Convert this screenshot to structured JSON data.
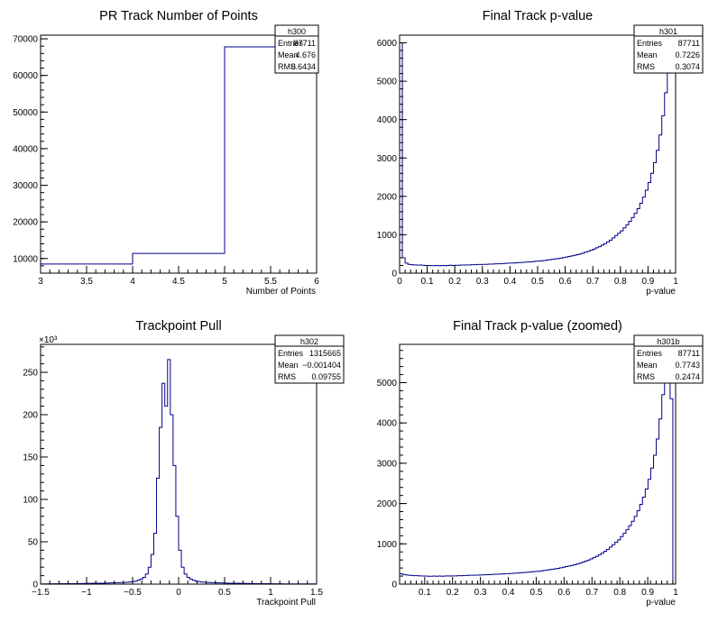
{
  "panels": [
    {
      "id": "pr-npoints",
      "stats": {
        "name": "h300",
        "rows": [
          [
            "Entries",
            "87711"
          ],
          [
            "Mean",
            "4.676"
          ],
          [
            "RMS",
            "0.6434"
          ]
        ]
      },
      "chart_data": {
        "type": "histogram",
        "title": "PR Track Number of Points",
        "xlabel": "Number of Points",
        "ylabel": "",
        "xlim": [
          3,
          6
        ],
        "ylim": [
          6000,
          71000
        ],
        "ymin_baseline": 6000,
        "xticks": [
          3,
          3.5,
          4,
          4.5,
          5,
          5.5,
          6
        ],
        "xtick_labels": [
          "3",
          "3.5",
          "4",
          "4.5",
          "5",
          "5.5",
          "6"
        ],
        "yticks": [
          10000,
          20000,
          30000,
          40000,
          50000,
          60000,
          70000
        ],
        "ytick_labels": [
          "10000",
          "20000",
          "30000",
          "40000",
          "50000",
          "60000",
          "70000"
        ],
        "y_exponent": "",
        "edges": [
          3,
          4,
          5,
          6
        ],
        "values": [
          8500,
          11400,
          67800
        ],
        "line_color": "#00008b"
      }
    },
    {
      "id": "final-pvalue",
      "stats": {
        "name": "h301",
        "rows": [
          [
            "Entries",
            "87711"
          ],
          [
            "Mean",
            "0.7226"
          ],
          [
            "RMS",
            "0.3074"
          ]
        ]
      },
      "chart_data": {
        "type": "histogram",
        "title": "Final Track p-value",
        "xlabel": "p-value",
        "ylabel": "",
        "xlim": [
          0,
          1
        ],
        "ylim": [
          0,
          6200
        ],
        "xticks": [
          0,
          0.1,
          0.2,
          0.3,
          0.4,
          0.5,
          0.6,
          0.7,
          0.8,
          0.9,
          1
        ],
        "xtick_labels": [
          "0",
          "0.1",
          "0.2",
          "0.3",
          "0.4",
          "0.5",
          "0.6",
          "0.7",
          "0.8",
          "0.9",
          "1"
        ],
        "yticks": [
          0,
          1000,
          2000,
          3000,
          4000,
          5000,
          6000
        ],
        "ytick_labels": [
          "0",
          "1000",
          "2000",
          "3000",
          "4000",
          "5000",
          "6000"
        ],
        "y_exponent": "",
        "bin_start": 0,
        "bin_width": 0.01,
        "values": [
          6000,
          400,
          260,
          230,
          220,
          215,
          210,
          210,
          205,
          200,
          200,
          195,
          195,
          200,
          195,
          200,
          195,
          200,
          205,
          200,
          205,
          205,
          210,
          210,
          215,
          215,
          220,
          220,
          225,
          225,
          230,
          230,
          235,
          235,
          240,
          245,
          245,
          250,
          255,
          260,
          260,
          265,
          270,
          275,
          280,
          285,
          290,
          295,
          300,
          310,
          315,
          320,
          330,
          340,
          350,
          360,
          370,
          380,
          390,
          405,
          420,
          435,
          450,
          465,
          480,
          500,
          520,
          545,
          570,
          595,
          625,
          660,
          690,
          730,
          770,
          815,
          860,
          920,
          980,
          1040,
          1100,
          1180,
          1260,
          1350,
          1450,
          1560,
          1680,
          1820,
          1980,
          2160,
          2360,
          2600,
          2880,
          3200,
          3600,
          4100,
          4700,
          5400,
          6100,
          5500
        ],
        "line_color": "#00008b"
      }
    },
    {
      "id": "trackpoint-pull",
      "stats": {
        "name": "h302",
        "rows": [
          [
            "Entries",
            "1315665"
          ],
          [
            "Mean",
            "−0.001404"
          ],
          [
            "RMS",
            "0.09755"
          ]
        ]
      },
      "chart_data": {
        "type": "histogram",
        "title": "Trackpoint Pull",
        "xlabel": "Trackpoint Pull",
        "ylabel": "",
        "xlim": [
          -1.5,
          1.5
        ],
        "ylim": [
          0,
          283
        ],
        "xticks": [
          -1.5,
          -1,
          -0.5,
          0,
          0.5,
          1,
          1.5
        ],
        "xtick_labels": [
          "−1.5",
          "−1",
          "−0.5",
          "0",
          "0.5",
          "1",
          "1.5"
        ],
        "yticks": [
          0,
          50,
          100,
          150,
          200,
          250
        ],
        "ytick_labels": [
          "0",
          "50",
          "100",
          "150",
          "200",
          "250"
        ],
        "y_exponent": "×10³",
        "bin_start": -1.5,
        "bin_width": 0.03,
        "values": [
          0.3,
          0.3,
          0.3,
          0.4,
          0.4,
          0.4,
          0.4,
          0.5,
          0.5,
          0.5,
          0.6,
          0.6,
          0.6,
          0.7,
          0.7,
          0.8,
          0.8,
          0.9,
          0.9,
          1.0,
          1.0,
          1.1,
          1.1,
          1.2,
          1.3,
          1.4,
          1.5,
          1.6,
          1.7,
          1.9,
          2.0,
          2.2,
          2.5,
          2.9,
          3.5,
          4.5,
          6,
          8,
          12,
          20,
          35,
          60,
          125,
          185,
          237,
          210,
          265,
          200,
          140,
          80,
          40,
          20,
          12,
          8,
          6,
          4.5,
          3.5,
          2.9,
          2.5,
          2.2,
          2.0,
          1.9,
          1.7,
          1.6,
          1.5,
          1.4,
          1.3,
          1.2,
          1.1,
          1.1,
          1.0,
          1.0,
          0.9,
          0.9,
          0.8,
          0.8,
          0.7,
          0.7,
          0.6,
          0.6,
          0.6,
          0.5,
          0.5,
          0.5,
          0.4,
          0.4,
          0.4,
          0.4,
          0.3,
          0.3,
          0.3,
          0.3,
          0.3,
          0.3,
          0.3,
          0.3,
          0.3,
          0.3,
          0.3,
          0.3
        ],
        "line_color": "#00008b"
      }
    },
    {
      "id": "final-pvalue-zoomed",
      "stats": {
        "name": "h301b",
        "rows": [
          [
            "Entries",
            "87711"
          ],
          [
            "Mean",
            "0.7743"
          ],
          [
            "RMS",
            "0.2474"
          ]
        ]
      },
      "chart_data": {
        "type": "histogram",
        "title": "Final Track p-value (zoomed)",
        "xlabel": "p-value",
        "ylabel": "",
        "xlim": [
          0.01,
          1
        ],
        "ylim": [
          0,
          5950
        ],
        "xticks": [
          0.1,
          0.2,
          0.3,
          0.4,
          0.5,
          0.6,
          0.7,
          0.8,
          0.9,
          1
        ],
        "xtick_labels": [
          "0.1",
          "0.2",
          "0.3",
          "0.4",
          "0.5",
          "0.6",
          "0.7",
          "0.8",
          "0.9",
          "1"
        ],
        "yticks": [
          0,
          1000,
          2000,
          3000,
          4000,
          5000
        ],
        "ytick_labels": [
          "0",
          "1000",
          "2000",
          "3000",
          "4000",
          "5000"
        ],
        "y_exponent": "",
        "bin_start": 0.01,
        "bin_width": 0.0099,
        "values": [
          260,
          240,
          230,
          220,
          215,
          210,
          210,
          205,
          200,
          200,
          195,
          195,
          200,
          195,
          200,
          195,
          200,
          205,
          200,
          205,
          205,
          210,
          210,
          215,
          215,
          220,
          220,
          225,
          225,
          230,
          230,
          235,
          235,
          240,
          245,
          245,
          250,
          255,
          260,
          260,
          265,
          270,
          275,
          280,
          285,
          290,
          295,
          300,
          310,
          315,
          320,
          330,
          340,
          350,
          360,
          370,
          380,
          390,
          405,
          420,
          435,
          450,
          465,
          480,
          500,
          520,
          545,
          570,
          595,
          625,
          660,
          690,
          730,
          770,
          815,
          860,
          920,
          980,
          1040,
          1100,
          1180,
          1260,
          1350,
          1450,
          1560,
          1680,
          1820,
          1980,
          2160,
          2360,
          2600,
          2880,
          3200,
          3600,
          4100,
          4700,
          5400,
          6100,
          4600
        ],
        "line_color": "#00008b"
      }
    }
  ]
}
